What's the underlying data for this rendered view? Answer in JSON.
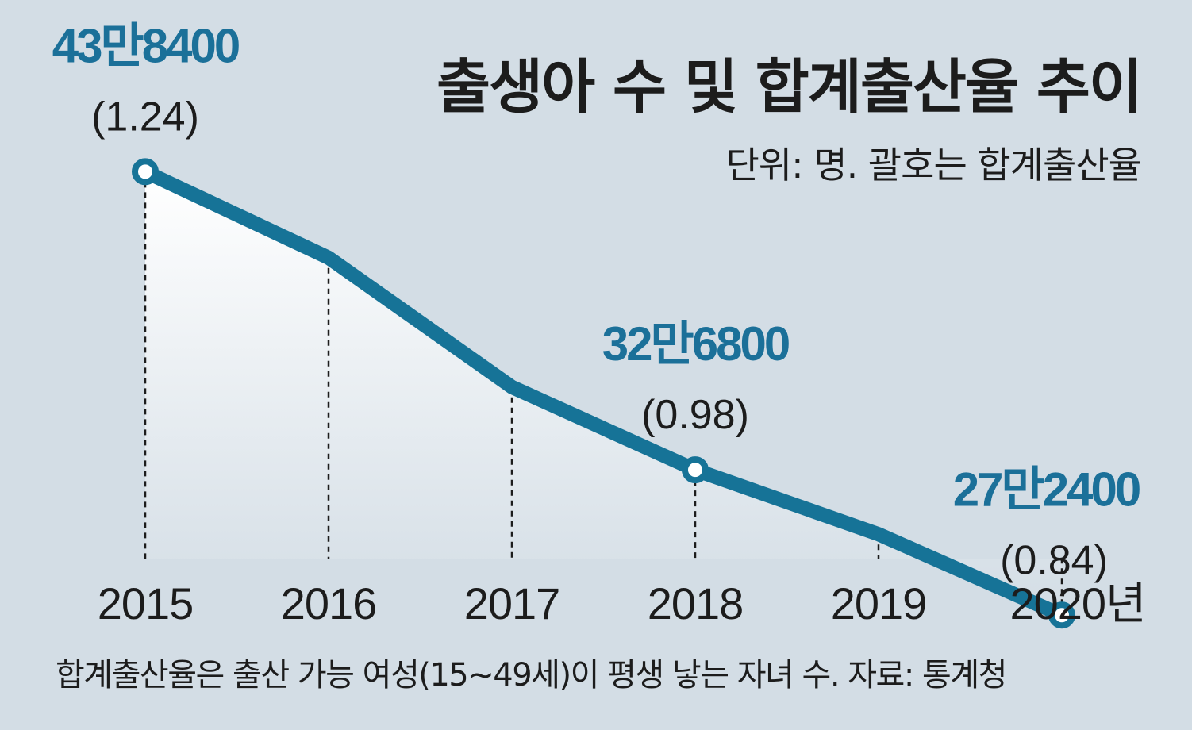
{
  "chart_data": {
    "type": "line",
    "title": "출생아 수 및 합계출산율 추이",
    "subtitle": "단위: 명. 괄호는 합계출산율",
    "categories": [
      "2015",
      "2016",
      "2017",
      "2018",
      "2019",
      "2020년"
    ],
    "series": [
      {
        "values": [
          438400,
          406200,
          357800,
          326800,
          302700,
          272400
        ]
      }
    ],
    "highlighted_points": [
      {
        "category": "2015",
        "value_label": "43만8400",
        "rate_label": "(1.24)"
      },
      {
        "category": "2018",
        "value_label": "32만6800",
        "rate_label": "(0.98)"
      },
      {
        "category": "2020년",
        "value_label": "27만2400",
        "rate_label": "(0.84)"
      }
    ],
    "ylim": [
      170000,
      470000
    ],
    "grid": false,
    "footnote": "합계출산율은 출산 가능 여성(15~49세)이 평생 낳는 자녀 수. 자료: 통계청"
  },
  "colors": {
    "background": "#d3dde5",
    "line": "#167397",
    "label_accent": "#1b7099",
    "text": "#1c1c1c"
  }
}
